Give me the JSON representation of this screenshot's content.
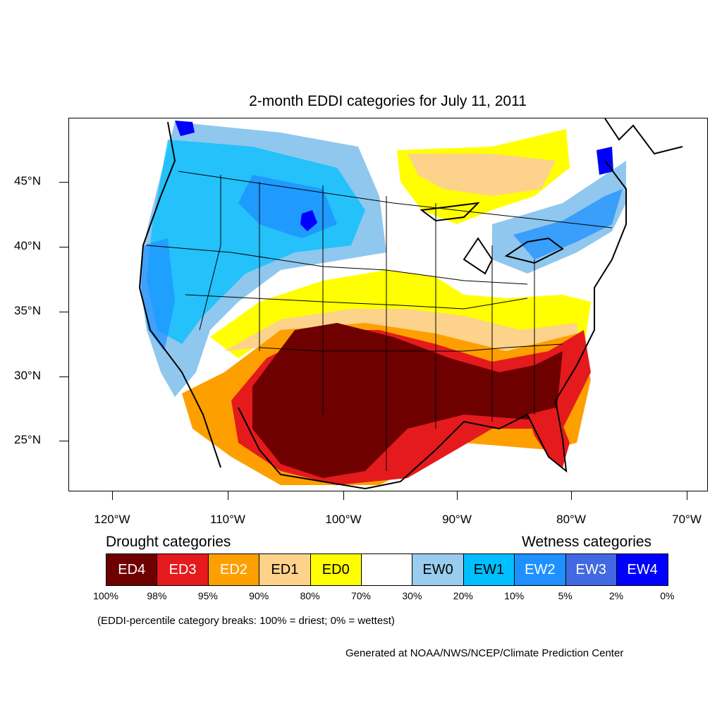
{
  "title": "2-month EDDI categories for July 11, 2011",
  "axes": {
    "lat_labels": [
      "45°N",
      "40°N",
      "35°N",
      "30°N",
      "25°N"
    ],
    "lon_labels": [
      "120°W",
      "110°W",
      "100°W",
      "90°W",
      "80°W",
      "70°W"
    ]
  },
  "legend": {
    "drought_heading": "Drought categories",
    "wetness_heading": "Wetness categories",
    "categories": [
      {
        "label": "ED4",
        "color": "#6e0000",
        "text_color": "#ffffff"
      },
      {
        "label": "ED3",
        "color": "#e41a1c",
        "text_color": "#ffffff"
      },
      {
        "label": "ED2",
        "color": "#fe9f00",
        "text_color": "#ffffff"
      },
      {
        "label": "ED1",
        "color": "#fdd28a",
        "text_color": "#000000"
      },
      {
        "label": "ED0",
        "color": "#ffff00",
        "text_color": "#000000"
      },
      {
        "label": "",
        "color": "#ffffff",
        "text_color": "#000000"
      },
      {
        "label": "EW0",
        "color": "#99ccee",
        "text_color": "#000000"
      },
      {
        "label": "EW1",
        "color": "#00bfff",
        "text_color": "#000000"
      },
      {
        "label": "EW2",
        "color": "#1e90ff",
        "text_color": "#ffffff"
      },
      {
        "label": "EW3",
        "color": "#4169e1",
        "text_color": "#ffffff"
      },
      {
        "label": "EW4",
        "color": "#0000ff",
        "text_color": "#ffffff"
      }
    ],
    "breaks": [
      "100%",
      "98%",
      "95%",
      "90%",
      "80%",
      "70%",
      "30%",
      "20%",
      "10%",
      "5%",
      "2%",
      "0%"
    ]
  },
  "note": "(EDDI-percentile category breaks: 100% = driest; 0% = wettest)",
  "credit": "Generated at NOAA/NWS/NCEP/Climate Prediction Center"
}
